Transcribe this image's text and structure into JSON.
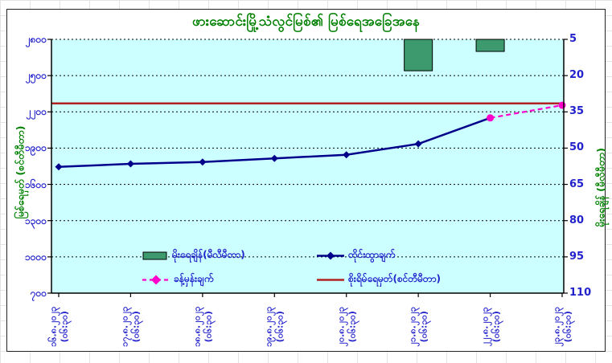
{
  "chart_data": {
    "type": "combo",
    "title": "ဖားဆောင်းမြို့သံလွင်မြစ်၏ မြစ်ရေအခြေအနေ",
    "categories": [
      "၁၆.၈.၂၀၂၃",
      "၁၇.၈.၂၀၂၃",
      "၁၈.၈.၂၀၂၃",
      "၁၉.၈.၂၀၂၃",
      "၂၀.၈.၂၀၂၃",
      "၂၁.၈.၂၀၂၃",
      "၂၂.၈.၂၀၂၃",
      "၂၃.၈.၂၀၂၃"
    ],
    "category_time_suffix": "(၀၆:၃၀)",
    "left_axis": {
      "label": "မြစ်ရေမှတ် (စင်တီမီတာ)",
      "tick_labels": [
        "၂၈၀၀",
        "၂၅၀၀",
        "၂၂၀၀",
        "၁၉၀၀",
        "၁၆၀၀",
        "၁၃၀၀",
        "၁၀၀၀",
        "၇၀၀"
      ],
      "tick_values": [
        2800,
        2500,
        2200,
        1900,
        1600,
        1300,
        1000,
        700
      ],
      "range": [
        700,
        2800
      ],
      "unit": "cm"
    },
    "right_axis": {
      "label": "မိုးရေချိန် (မီလီမီတာ)",
      "tick_labels": [
        "5",
        "20",
        "35",
        "50",
        "65",
        "80",
        "95",
        "110"
      ],
      "tick_values": [
        5,
        20,
        35,
        50,
        65,
        80,
        95,
        110
      ],
      "range": [
        5,
        110
      ],
      "inverted": true,
      "unit": "mm"
    },
    "series": [
      {
        "name": "မိုးရေချိန်(မီလီမီတာ)",
        "type": "bar",
        "axis": "right",
        "color": "#3C9A6E",
        "values": [
          null,
          null,
          null,
          null,
          null,
          18,
          10,
          null
        ]
      },
      {
        "name": "တိုင်းထွာချက်",
        "type": "line",
        "axis": "left",
        "color": "#00008B",
        "marker": "diamond",
        "values": [
          1745,
          1770,
          1785,
          1815,
          1845,
          1935,
          2150,
          null
        ]
      },
      {
        "name": "ခန့်မှန်းချက်",
        "type": "dashed-line",
        "axis": "left",
        "color": "#FF00CC",
        "marker": "circle",
        "values": [
          null,
          null,
          null,
          null,
          null,
          null,
          2150,
          2255
        ]
      },
      {
        "name": "စိုးရိမ်ရေမှတ်(စင်တီမီတာ)",
        "type": "reference-line",
        "axis": "left",
        "color": "#B22222",
        "value": 2270
      }
    ],
    "grid": "horizontal-dotted",
    "legend_position": "inside-bottom",
    "plot_bg": "#CCFFFF",
    "title_color": "#008000",
    "axis_text_color": "#2222CC"
  }
}
